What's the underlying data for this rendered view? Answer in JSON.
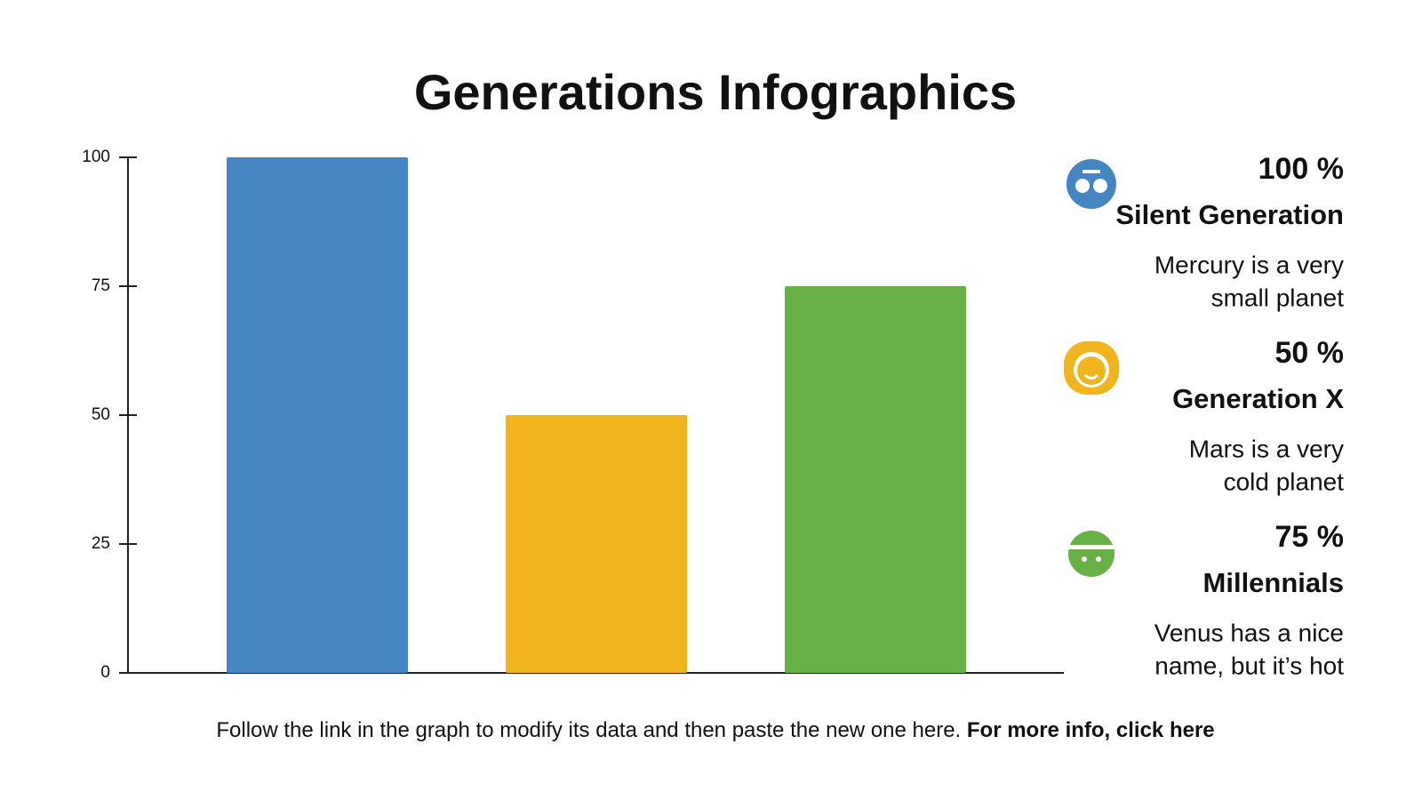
{
  "chart_data": {
    "type": "bar",
    "title": "Generations Infographics",
    "categories": [
      "Silent Generation",
      "Generation X",
      "Millennials"
    ],
    "values": [
      100,
      50,
      75
    ],
    "value_labels": [
      "100 %",
      "50 %",
      "75 %"
    ],
    "colors": [
      "#4585c2",
      "#f0b41e",
      "#66b046"
    ],
    "descriptions": [
      [
        "Mercury is a very",
        "small planet"
      ],
      [
        "Mars is a very",
        "cold planet"
      ],
      [
        "Venus has a nice",
        "name, but it’s hot"
      ]
    ],
    "ylim": [
      0,
      100
    ],
    "yticks": [
      0,
      25,
      50,
      75,
      100
    ],
    "grid": false
  },
  "footer": {
    "text": "Follow the link in the graph to modify its data and then paste the new one here.",
    "link": "For more info, click here"
  }
}
